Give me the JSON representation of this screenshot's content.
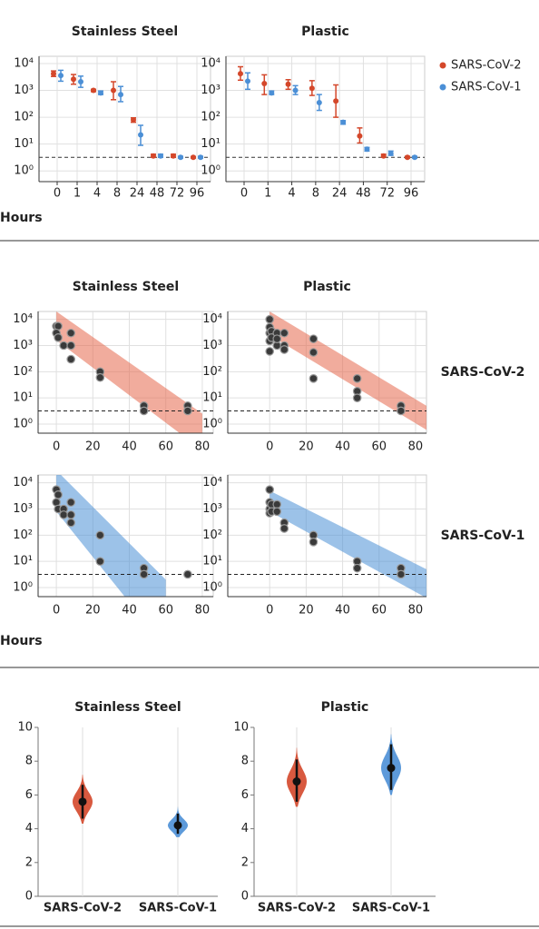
{
  "chart_data": [
    {
      "type": "errorbar",
      "xlabel": "Hours",
      "categories": [
        "0",
        "1",
        "4",
        "8",
        "24",
        "48",
        "72",
        "96"
      ],
      "log_y": true,
      "grid": true,
      "ylim": [
        0.4,
        18600
      ],
      "yticks": [
        {
          "value": 1,
          "label": "10⁰"
        },
        {
          "value": 10,
          "label": "10¹"
        },
        {
          "value": 100,
          "label": "10²"
        },
        {
          "value": 1000,
          "label": "10³"
        },
        {
          "value": 10000,
          "label": "10⁴"
        }
      ],
      "detection_limit": 3.2,
      "legend": "right",
      "series": [
        {
          "name": "SARS-CoV-2",
          "color": "#d4472a"
        },
        {
          "name": "SARS-CoV-1",
          "color": "#4b8fd6"
        }
      ],
      "panels": [
        {
          "title": "Stainless Steel",
          "series": [
            {
              "values": [
                4200,
                2600,
                1000,
                1000,
                80,
                3.6,
                3.6,
                3.2
              ],
              "low": [
                3300,
                1700,
                900,
                450,
                65,
                3.2,
                3.2,
                3.0
              ],
              "high": [
                5300,
                3900,
                1100,
                2100,
                95,
                4.2,
                4.2,
                3.4
              ]
            },
            {
              "values": [
                3600,
                2100,
                800,
                700,
                22,
                3.6,
                3.2,
                3.2
              ],
              "low": [
                2200,
                1300,
                700,
                380,
                9,
                3.2,
                3.0,
                3.0
              ],
              "high": [
                5600,
                3400,
                950,
                1400,
                50,
                4.2,
                3.5,
                3.5
              ]
            }
          ]
        },
        {
          "title": "Plastic",
          "series": [
            {
              "values": [
                4200,
                1800,
                1700,
                1200,
                400,
                20,
                3.6,
                3.2
              ],
              "low": [
                2400,
                700,
                1100,
                650,
                100,
                11,
                3.2,
                3.0
              ],
              "high": [
                7600,
                3800,
                2500,
                2300,
                1600,
                40,
                4.2,
                3.5
              ]
            },
            {
              "values": [
                2200,
                800,
                1000,
                350,
                65,
                6.5,
                4.5,
                3.2
              ],
              "low": [
                1100,
                700,
                700,
                180,
                55,
                5.5,
                3.8,
                3.0
              ],
              "high": [
                4500,
                950,
                1500,
                700,
                75,
                7.5,
                5.5,
                3.5
              ]
            }
          ]
        }
      ]
    },
    {
      "type": "scatter",
      "xlabel": "Hours",
      "log_y": true,
      "grid": true,
      "ylim": [
        0.45,
        20000
      ],
      "yticks": [
        {
          "value": 1,
          "label": "10⁰"
        },
        {
          "value": 10,
          "label": "10¹"
        },
        {
          "value": 100,
          "label": "10²"
        },
        {
          "value": 1000,
          "label": "10³"
        },
        {
          "value": 10000,
          "label": "10⁴"
        }
      ],
      "xticks": [
        0,
        20,
        40,
        60,
        80
      ],
      "detection_limit": 3.2,
      "point_color": "#3a3a3a",
      "columns": [
        {
          "title": "Stainless Steel",
          "xlim": [
            -10,
            86
          ]
        },
        {
          "title": "Plastic",
          "xlim": [
            -23,
            86
          ]
        }
      ],
      "rows": [
        {
          "name": "SARS-CoV-2",
          "color": "#e5684c",
          "panels": [
            {
              "x": [
                0,
                1,
                0,
                1,
                4,
                8,
                8,
                8,
                24,
                24,
                48,
                48,
                72,
                72
              ],
              "y": [
                5500,
                5500,
                3000,
                2000,
                1000,
                1000,
                3000,
                300,
                100,
                60,
                5,
                3.2,
                5,
                3.2
              ],
              "band": {
                "x": [
                  0,
                  80
                ],
                "low": [
                  1600,
                  0.1
                ],
                "high": [
                  20000,
                  2.5
                ]
              }
            },
            {
              "x": [
                0,
                0,
                0,
                0,
                0,
                1,
                1,
                4,
                4,
                4,
                8,
                8,
                8,
                24,
                24,
                24,
                48,
                48,
                48,
                72,
                72
              ],
              "y": [
                10000,
                5000,
                3000,
                1500,
                600,
                3500,
                2000,
                3000,
                1000,
                1800,
                3000,
                1000,
                700,
                1800,
                550,
                55,
                55,
                18,
                10,
                5,
                3.2
              ],
              "band": {
                "x": [
                  0,
                  86
                ],
                "low": [
                  2500,
                  0.6
                ],
                "high": [
                  20000,
                  5
                ]
              }
            }
          ]
        },
        {
          "name": "SARS-CoV-1",
          "color": "#4b8fd6",
          "panels": [
            {
              "x": [
                0,
                1,
                0,
                1,
                4,
                4,
                8,
                8,
                8,
                24,
                24,
                48,
                48,
                72
              ],
              "y": [
                5500,
                3500,
                1800,
                1000,
                1000,
                600,
                1800,
                300,
                600,
                100,
                10,
                5.5,
                3.2,
                3.2
              ],
              "band": {
                "x": [
                  0,
                  60
                ],
                "low": [
                  800,
                  0.005
                ],
                "high": [
                  30000,
                  2
                ]
              }
            },
            {
              "x": [
                0,
                0,
                0,
                0,
                1,
                1,
                4,
                4,
                8,
                8,
                24,
                24,
                48,
                48,
                72,
                72
              ],
              "y": [
                5500,
                1800,
                1000,
                700,
                1500,
                800,
                1500,
                800,
                300,
                180,
                100,
                55,
                10,
                5.5,
                5.5,
                3.2
              ],
              "band": {
                "x": [
                  0,
                  86
                ],
                "low": [
                  800,
                  0.4
                ],
                "high": [
                  5000,
                  5
                ]
              }
            }
          ]
        }
      ]
    },
    {
      "type": "violin",
      "ylim": [
        0,
        10
      ],
      "yticks": [
        0,
        2,
        4,
        6,
        8,
        10
      ],
      "series": [
        {
          "name": "SARS-CoV-2",
          "color": "#d4472a"
        },
        {
          "name": "SARS-CoV-1",
          "color": "#4b8fd6"
        }
      ],
      "panels": [
        {
          "title": "Stainless Steel",
          "median": [
            5.6,
            4.2
          ],
          "ci_low": [
            4.6,
            3.7
          ],
          "ci_high": [
            6.6,
            4.9
          ],
          "min": [
            4.3,
            3.5
          ],
          "max": [
            7.2,
            5.3
          ]
        },
        {
          "title": "Plastic",
          "median": [
            6.8,
            7.6
          ],
          "ci_low": [
            5.6,
            6.3
          ],
          "ci_high": [
            8.1,
            9.0
          ],
          "min": [
            5.3,
            6.0
          ],
          "max": [
            8.8,
            9.6
          ]
        }
      ]
    }
  ]
}
